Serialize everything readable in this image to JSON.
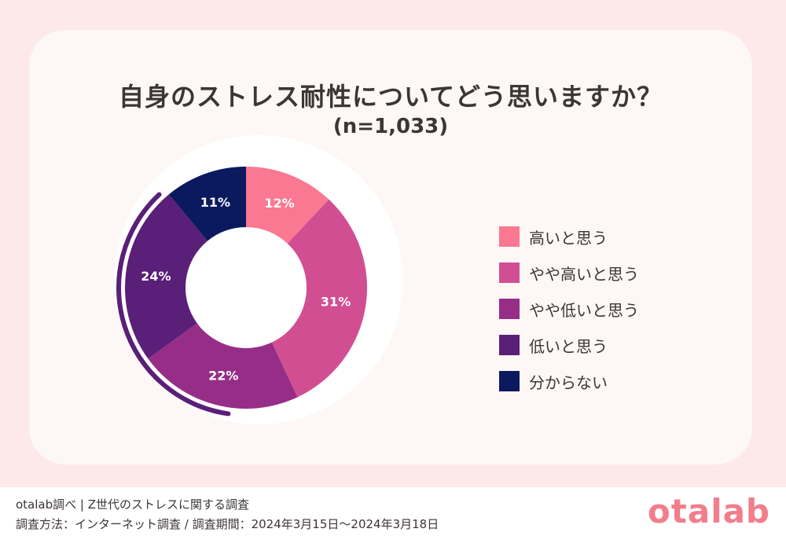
{
  "title": "自身のストレス耐性についてどう思いますか？",
  "subtitle": "(n=1,033)",
  "chart_data": {
    "type": "pie",
    "title": "自身のストレス耐性についてどう思いますか？",
    "subtitle": "(n=1,033)",
    "categories": [
      "高いと思う",
      "やや高いと思う",
      "やや低いと思う",
      "低いと思う",
      "分からない"
    ],
    "values": [
      12,
      31,
      22,
      24,
      11
    ],
    "labels": [
      "12%",
      "31%",
      "22%",
      "24%",
      "11%"
    ],
    "colors": [
      "#fa7892",
      "#d24e92",
      "#962e88",
      "#5a1f78",
      "#0b1a5e"
    ],
    "legend": "right"
  },
  "footer": {
    "source": "otalab調べ | Z世代のストレスに関する調査",
    "method": "調査方法：インターネット調査 / 調査期間：2024年3月15日〜2024年3月18日",
    "brand": "otalab"
  }
}
